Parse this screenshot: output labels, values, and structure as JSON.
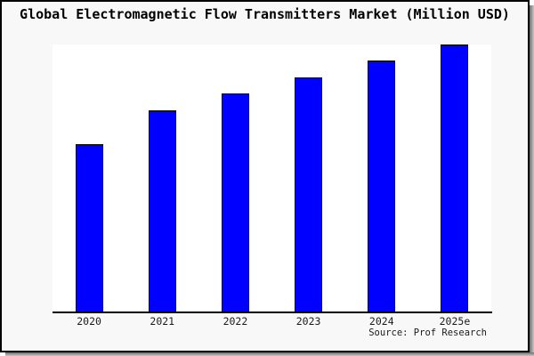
{
  "title": "Global Electromagnetic Flow Transmitters Market (Million USD)",
  "source_label": "Source: Prof Research",
  "colors": {
    "bar_fill": "#0000ff",
    "bar_border": "#000000",
    "card_background": "#f8f8f8",
    "plot_background": "#ffffff",
    "axis": "#000000",
    "border": "#000000",
    "shadow": "#8a8a8a"
  },
  "chart_data": {
    "type": "bar",
    "title": "Global Electromagnetic Flow Transmitters Market (Million USD)",
    "categories": [
      "2020",
      "2021",
      "2022",
      "2023",
      "2024",
      "2025e"
    ],
    "values": [
      62.7,
      75.3,
      81.7,
      87.8,
      94.0,
      100.0
    ],
    "units": "relative bar height, % of tallest (2025e) bar; y-axis has no ticks or labels",
    "xlabel": "",
    "ylabel": "",
    "ylim": [
      0,
      100
    ],
    "grid": false,
    "legend": false,
    "annotation": "Source: Prof Research"
  }
}
